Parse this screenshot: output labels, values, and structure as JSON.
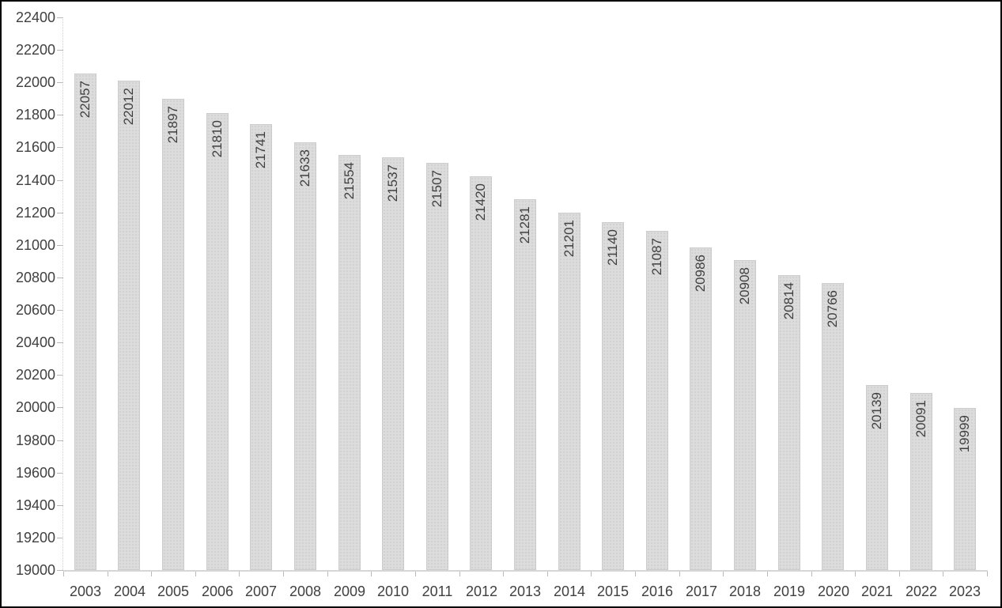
{
  "window": {
    "background": "#ffffff",
    "frame_border_color": "#000000"
  },
  "chart_data": {
    "type": "bar",
    "title": "",
    "xlabel": "",
    "ylabel": "",
    "categories": [
      "2003",
      "2004",
      "2005",
      "2006",
      "2007",
      "2008",
      "2009",
      "2010",
      "2011",
      "2012",
      "2013",
      "2014",
      "2015",
      "2016",
      "2017",
      "2018",
      "2019",
      "2020",
      "2021",
      "2022",
      "2023"
    ],
    "values": [
      22057,
      22012,
      21897,
      21810,
      21741,
      21633,
      21554,
      21537,
      21507,
      21420,
      21281,
      21201,
      21140,
      21087,
      20986,
      20908,
      20814,
      20766,
      20139,
      20091,
      19999
    ],
    "yticks": [
      22400,
      22200,
      22000,
      21800,
      21600,
      21400,
      21200,
      21000,
      20800,
      20600,
      20400,
      20200,
      20000,
      19800,
      19600,
      19400,
      19200,
      19000
    ],
    "ylim": [
      19000,
      22400
    ],
    "ytick_step": 200,
    "grid": false,
    "legend": null,
    "data_label_position": "inside-end-rotated-90",
    "colors": {
      "bar_fill": "#dcdcdc",
      "bar_dot": "#c7c7c7",
      "bar_border": "#cccccc",
      "text": "#404040",
      "axis_line": "#d6d6d6",
      "tick": "#b9b9b9"
    }
  }
}
